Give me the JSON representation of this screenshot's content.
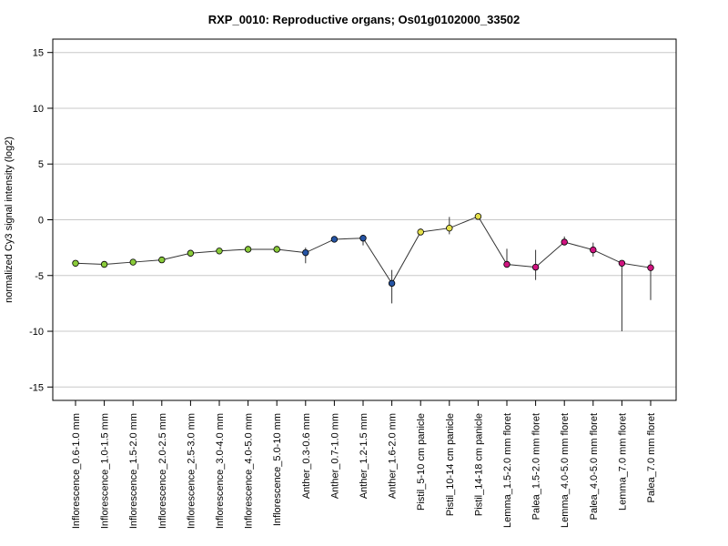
{
  "chart_data": {
    "type": "line",
    "title": "RXP_0010: Reproductive organs; Os01g0102000_33502",
    "xlabel": "",
    "ylabel": "normalized Cy3 signal intensity (log2)",
    "ylim": [
      -16.2,
      16.2
    ],
    "yticks": [
      15,
      10,
      5,
      0,
      -5,
      -10,
      -15
    ],
    "grid": "horizontal",
    "categories": [
      "Inflorescence_0.6-1.0 mm",
      "Inflorescence_1.0-1.5 mm",
      "Inflorescence_1.5-2.0 mm",
      "Inflorescence_2.0-2.5 mm",
      "Inflorescence_2.5-3.0 mm",
      "Inflorescence_3.0-4.0 mm",
      "Inflorescence_4.0-5.0 mm",
      "Inflorescence_5.0-10 mm",
      "Anther_0.3-0.6 mm",
      "Anther_0.7-1.0 mm",
      "Anther_1.2-1.5 mm",
      "Anther_1.6-2.0 mm",
      "Pistil_5-10 cm panicle",
      "Pistil_10-14 cm panicle",
      "Pistil_14-18 cm panicle",
      "Lemma_1.5-2.0 mm floret",
      "Palea_1.5-2.0 mm floret",
      "Lemma_4.0-5.0 mm floret",
      "Palea_4.0-5.0 mm floret",
      "Lemma_7.0 mm floret",
      "Palea_7.0 mm floret"
    ],
    "values": [
      -3.9,
      -4.0,
      -3.8,
      -3.6,
      -3.0,
      -2.8,
      -2.65,
      -2.65,
      -2.95,
      -1.75,
      -1.65,
      -5.7,
      -1.1,
      -0.75,
      0.3,
      -4.0,
      -4.25,
      -2.0,
      -2.7,
      -3.9,
      -4.3
    ],
    "error_low": [
      -3.9,
      -4.0,
      -3.8,
      -3.6,
      -3.0,
      -2.8,
      -2.65,
      -2.65,
      -3.9,
      -1.75,
      -2.3,
      -7.5,
      -1.4,
      -1.3,
      0.3,
      -4.0,
      -5.4,
      -2.1,
      -3.3,
      -10.0,
      -7.2
    ],
    "error_high": [
      -3.9,
      -4.0,
      -3.8,
      -3.6,
      -3.0,
      -2.8,
      -2.65,
      -2.65,
      -2.5,
      -1.75,
      -1.5,
      -4.5,
      -0.8,
      0.25,
      0.3,
      -2.6,
      -2.7,
      -1.5,
      -2.05,
      -3.9,
      -3.65
    ],
    "point_colors": [
      "#8acb3a",
      "#8acb3a",
      "#8acb3a",
      "#8acb3a",
      "#8acb3a",
      "#8acb3a",
      "#8acb3a",
      "#8acb3a",
      "#2554a4",
      "#2554a4",
      "#2554a4",
      "#2554a4",
      "#e5e04a",
      "#e5e04a",
      "#e5e04a",
      "#d01480",
      "#d01480",
      "#d01480",
      "#d01480",
      "#d01480",
      "#d01480"
    ],
    "line_color": "#333333"
  }
}
